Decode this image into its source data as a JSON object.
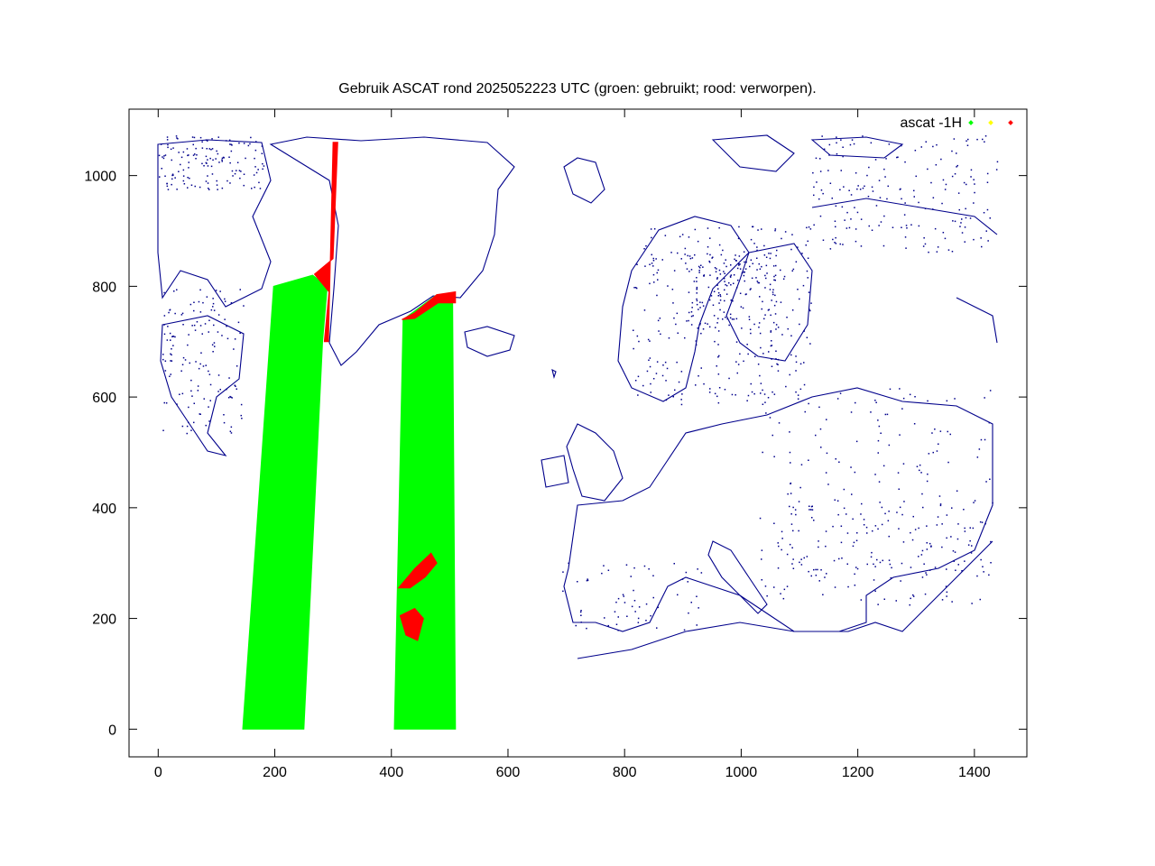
{
  "chart_data": {
    "type": "scatter",
    "title": "Gebruik ASCAT rond 2025052223 UTC (groen: gebruikt; rood: verworpen).",
    "xlabel": "",
    "ylabel": "",
    "xlim": [
      -50,
      1490
    ],
    "ylim": [
      -50,
      1120
    ],
    "x_ticks": [
      0,
      200,
      400,
      600,
      800,
      1000,
      1200,
      1400
    ],
    "y_ticks": [
      0,
      200,
      400,
      600,
      800,
      1000
    ],
    "grid": false,
    "legend_position": "top-right",
    "legend": {
      "label": "ascat -1H",
      "colors": [
        "#00ff00",
        "#ffff00",
        "#ff0000"
      ]
    },
    "series": [
      {
        "color": "#00ff00",
        "kind": "swath",
        "regions": [
          {
            "polygon": [
              [
                145,
                0
              ],
              [
                250,
                0
              ],
              [
                282,
                700
              ],
              [
                290,
                800
              ],
              [
                265,
                820
              ],
              [
                198,
                800
              ]
            ]
          },
          {
            "polygon": [
              [
                405,
                0
              ],
              [
                510,
                0
              ],
              [
                505,
                780
              ],
              [
                478,
                785
              ],
              [
                420,
                740
              ]
            ]
          }
        ]
      },
      {
        "color": "#ff0000",
        "kind": "rejected",
        "regions": [
          {
            "polygon": [
              [
                285,
                700
              ],
              [
                292,
                700
              ],
              [
                300,
                1060
              ],
              [
                308,
                1060
              ],
              [
                300,
                850
              ],
              [
                268,
                822
              ],
              [
                293,
                790
              ]
            ]
          },
          {
            "polygon": [
              [
                418,
                740
              ],
              [
                440,
                752
              ],
              [
                478,
                785
              ],
              [
                510,
                790
              ],
              [
                510,
                770
              ],
              [
                480,
                770
              ],
              [
                440,
                742
              ]
            ]
          },
          {
            "polygon": [
              [
                412,
                255
              ],
              [
                440,
                290
              ],
              [
                468,
                318
              ],
              [
                478,
                300
              ],
              [
                458,
                275
              ],
              [
                432,
                255
              ]
            ]
          },
          {
            "polygon": [
              [
                415,
                205
              ],
              [
                440,
                218
              ],
              [
                455,
                200
              ],
              [
                445,
                160
              ],
              [
                425,
                170
              ]
            ]
          }
        ]
      }
    ],
    "coastline_color": "#00008b"
  }
}
